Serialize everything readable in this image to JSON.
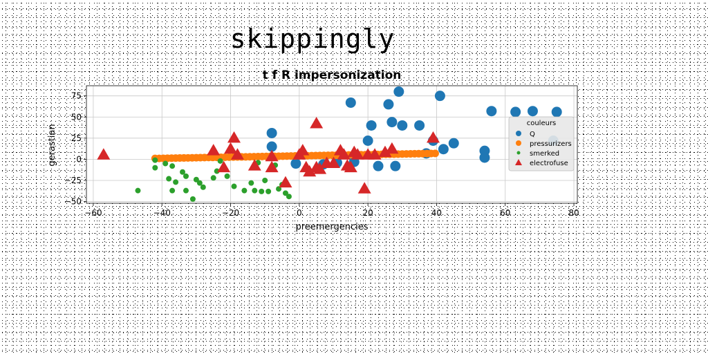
{
  "page_title": "skippingly",
  "chart_data": {
    "type": "scatter",
    "title": "t f R impersonization",
    "xlabel": "preemergencies",
    "ylabel": "gerastian",
    "xlim": [
      -62,
      81
    ],
    "ylim": [
      -52,
      87
    ],
    "xticks": [
      -60,
      -40,
      -20,
      0,
      20,
      40,
      60,
      80
    ],
    "yticks": [
      -50,
      -25,
      0,
      25,
      50,
      75
    ],
    "grid": true,
    "legend": {
      "title": "couleurs",
      "position": "right"
    },
    "series": [
      {
        "name": "Q",
        "color": "#1f77b4",
        "marker": "circle",
        "size": 7.5,
        "points": [
          [
            29,
            80
          ],
          [
            41,
            75
          ],
          [
            15,
            67
          ],
          [
            26,
            65
          ],
          [
            56,
            57
          ],
          [
            63,
            56
          ],
          [
            68,
            57
          ],
          [
            75,
            56
          ],
          [
            27,
            44
          ],
          [
            30,
            40
          ],
          [
            21,
            40
          ],
          [
            35,
            40
          ],
          [
            -8,
            31
          ],
          [
            39,
            22
          ],
          [
            45,
            19
          ],
          [
            42,
            12
          ],
          [
            20,
            22
          ],
          [
            54,
            10
          ],
          [
            74,
            22
          ],
          [
            -8,
            15
          ],
          [
            54,
            2
          ],
          [
            37,
            7
          ],
          [
            23,
            -8
          ],
          [
            28,
            -8
          ],
          [
            16,
            -3
          ],
          [
            -1,
            -5
          ],
          [
            7,
            -6
          ],
          [
            11,
            -4
          ]
        ]
      },
      {
        "name": "pressurizers",
        "color": "#ff7f0e",
        "marker": "circle",
        "size": 5.5,
        "points": "orange_band"
      },
      {
        "name": "smerked",
        "color": "#2ca02c",
        "marker": "circle",
        "size": 4,
        "points": [
          [
            -47,
            -37
          ],
          [
            -42,
            -10
          ],
          [
            -42,
            -1
          ],
          [
            -39,
            -5
          ],
          [
            -37,
            -8
          ],
          [
            -34,
            -15
          ],
          [
            -33,
            -20
          ],
          [
            -30,
            -24
          ],
          [
            -29,
            -28
          ],
          [
            -28,
            -33
          ],
          [
            -31,
            -47
          ],
          [
            -37,
            -37
          ],
          [
            -33,
            -37
          ],
          [
            -38,
            -23
          ],
          [
            -36,
            -27
          ],
          [
            -24,
            -14
          ],
          [
            -25,
            -22
          ],
          [
            -21,
            -20
          ],
          [
            -19,
            -32
          ],
          [
            -16,
            -37
          ],
          [
            -14,
            -28
          ],
          [
            -13,
            -37
          ],
          [
            -11,
            -38
          ],
          [
            -9,
            -38
          ],
          [
            -6,
            -35
          ],
          [
            -5,
            -30
          ],
          [
            -4,
            -40
          ],
          [
            -3,
            -44
          ],
          [
            -12,
            -4
          ],
          [
            -7,
            -7
          ],
          [
            -23,
            -2
          ],
          [
            -10,
            -25
          ]
        ]
      },
      {
        "name": "electrofuse",
        "color": "#d62728",
        "marker": "triangle",
        "size": 10,
        "points": [
          [
            -57,
            5
          ],
          [
            -25,
            10
          ],
          [
            -22,
            -10
          ],
          [
            -19,
            25
          ],
          [
            -20,
            12
          ],
          [
            -18,
            5
          ],
          [
            -13,
            -8
          ],
          [
            -8,
            -10
          ],
          [
            -8,
            3
          ],
          [
            -4,
            -28
          ],
          [
            0,
            5
          ],
          [
            1,
            10
          ],
          [
            2,
            -10
          ],
          [
            3,
            -15
          ],
          [
            5,
            42
          ],
          [
            5,
            -10
          ],
          [
            6,
            -12
          ],
          [
            8,
            -5
          ],
          [
            10,
            -5
          ],
          [
            12,
            10
          ],
          [
            13,
            5
          ],
          [
            14,
            -8
          ],
          [
            15,
            -10
          ],
          [
            16,
            8
          ],
          [
            17,
            5
          ],
          [
            19,
            -35
          ],
          [
            20,
            5
          ],
          [
            22,
            5
          ],
          [
            25,
            8
          ],
          [
            27,
            12
          ],
          [
            39,
            25
          ]
        ]
      }
    ]
  }
}
